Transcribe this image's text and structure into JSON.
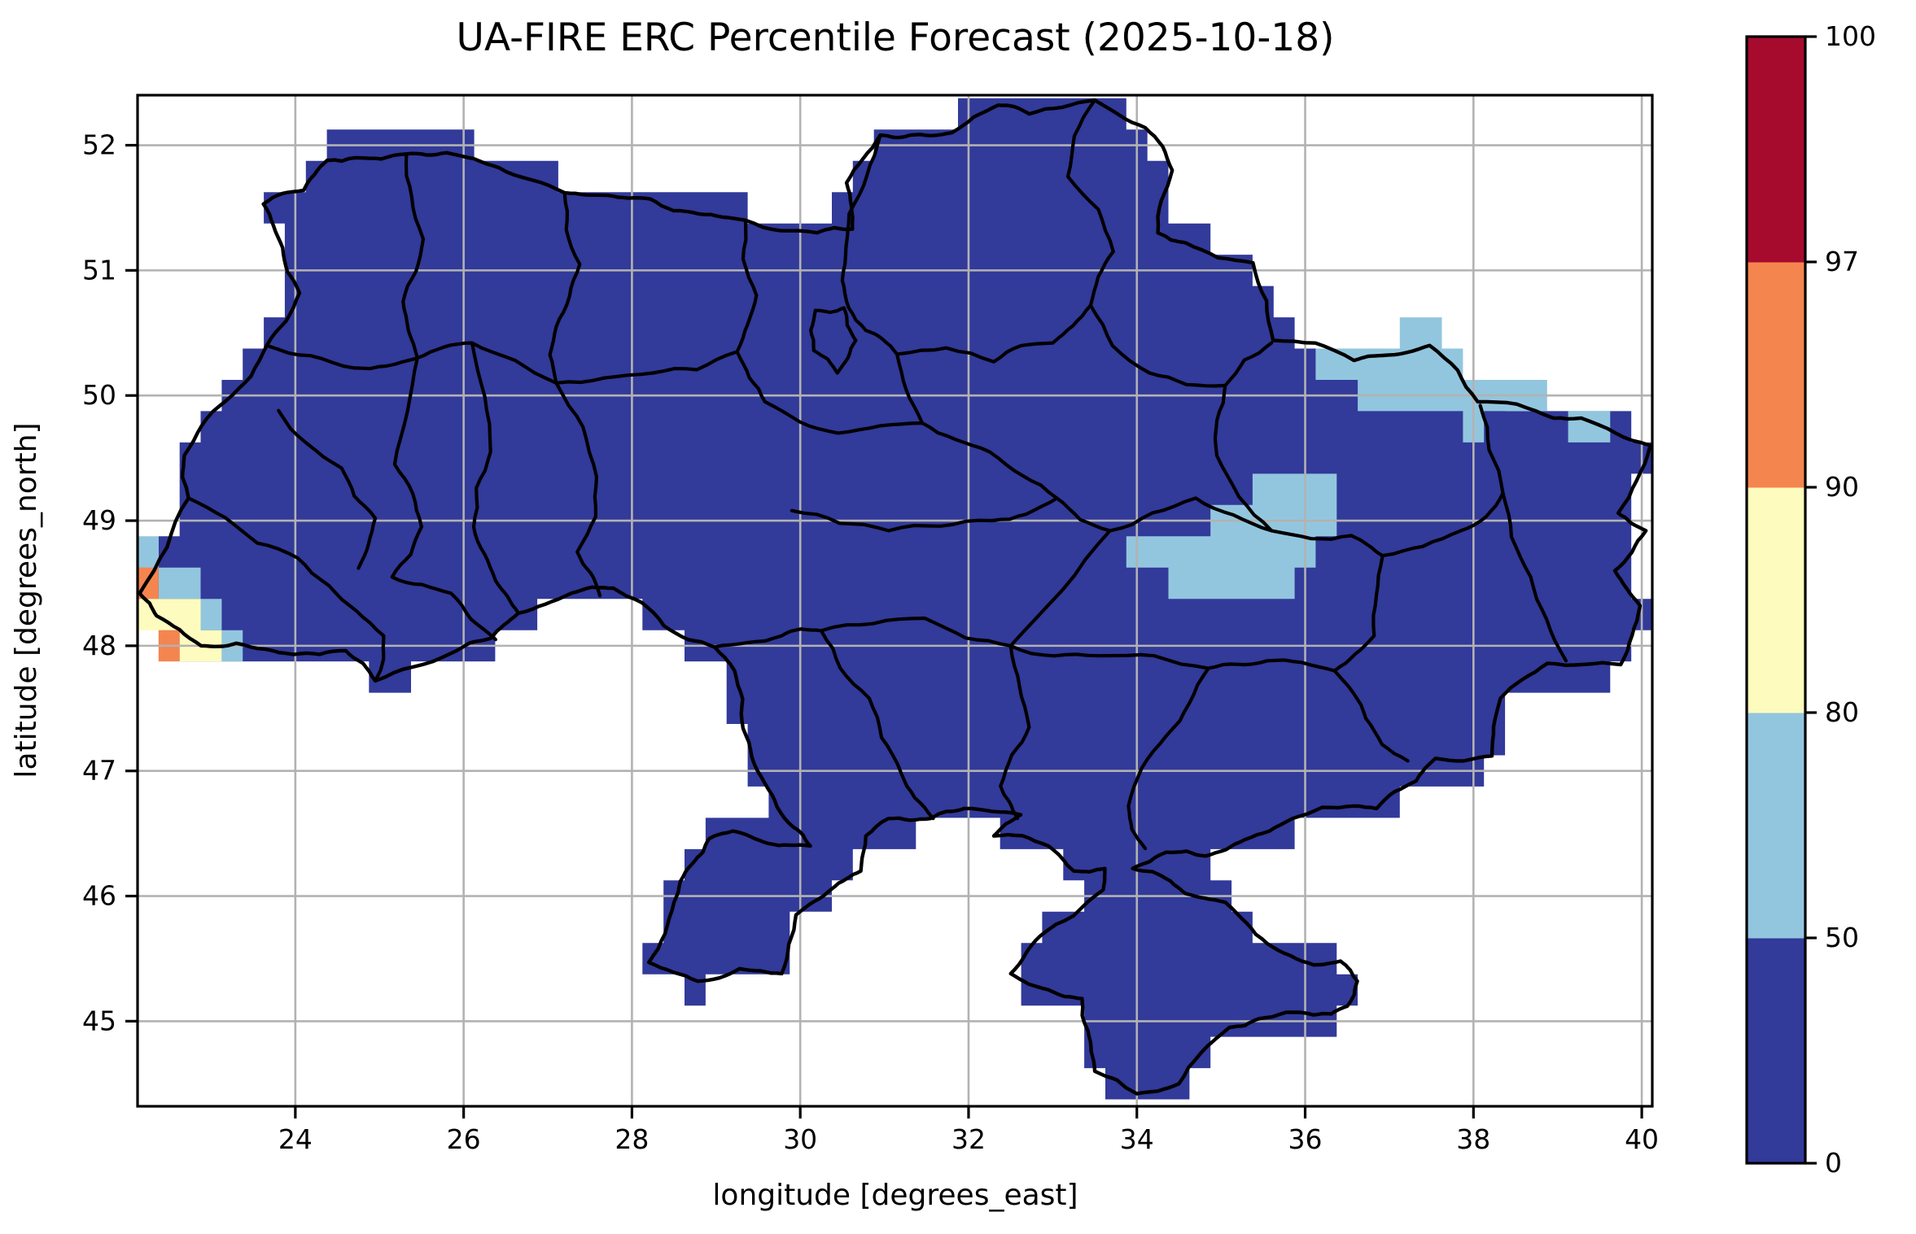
{
  "title": "UA-FIRE ERC Percentile Forecast (2025-10-18)",
  "axes": {
    "xlabel": "longitude [degrees_east]",
    "ylabel": "latitude [degrees_north]",
    "x_tick_labels": [
      "24",
      "26",
      "28",
      "30",
      "32",
      "34",
      "36",
      "38",
      "40"
    ],
    "x_tick_values": [
      24,
      26,
      28,
      30,
      32,
      34,
      36,
      38,
      40
    ],
    "y_tick_labels": [
      "45",
      "46",
      "47",
      "48",
      "49",
      "50",
      "51",
      "52"
    ],
    "y_tick_values": [
      45,
      46,
      47,
      48,
      49,
      50,
      51,
      52
    ],
    "grid_color": "#b2b2b2",
    "frame_color": "#000000"
  },
  "colorbar": {
    "tick_labels": [
      "0",
      "50",
      "80",
      "90",
      "97",
      "100"
    ],
    "levels": [
      0,
      50,
      80,
      90,
      97,
      100
    ],
    "segment_colors": [
      "#323a9a",
      "#92c6de",
      "#fdfcbe",
      "#f5854f",
      "#a60b2e"
    ]
  },
  "chart_data": {
    "type": "heatmap",
    "title": "UA-FIRE ERC Percentile Forecast (2025-10-18)",
    "xlabel": "longitude [degrees_east]",
    "ylabel": "latitude [degrees_north]",
    "extent": {
      "lon": [
        22.125,
        40.125
      ],
      "lat": [
        44.32,
        52.4
      ]
    },
    "grid_resolution_deg": 0.25,
    "levels": [
      0,
      50,
      80,
      90,
      97,
      100
    ],
    "level_colors": [
      "#323a9a",
      "#92c6de",
      "#fdfcbe",
      "#f5854f",
      "#a60b2e"
    ],
    "base_class": "0-50",
    "background_outside_domain": "#ffffff",
    "patches": [
      {
        "range": "50-80",
        "rects": [
          [
            22.125,
            22.375,
            48.625,
            48.875
          ],
          [
            22.375,
            22.875,
            48.375,
            48.625
          ],
          [
            22.875,
            23.125,
            48.125,
            48.375
          ],
          [
            23.125,
            23.375,
            47.875,
            48.125
          ],
          [
            35.375,
            36.375,
            49.125,
            49.375
          ],
          [
            34.875,
            36.375,
            48.875,
            49.125
          ],
          [
            33.875,
            36.125,
            48.625,
            48.875
          ],
          [
            34.375,
            35.875,
            48.375,
            48.625
          ],
          [
            36.125,
            36.375,
            49.125,
            49.375
          ],
          [
            37.125,
            37.625,
            50.375,
            50.625
          ],
          [
            36.125,
            37.875,
            50.125,
            50.375
          ],
          [
            36.625,
            38.875,
            49.875,
            50.125
          ],
          [
            37.875,
            38.125,
            49.625,
            49.875
          ],
          [
            39.125,
            39.625,
            49.625,
            49.875
          ]
        ]
      },
      {
        "range": "80-90",
        "rects": [
          [
            22.125,
            22.875,
            48.125,
            48.375
          ],
          [
            22.625,
            23.125,
            47.875,
            48.125
          ]
        ]
      },
      {
        "range": "90-97",
        "rects": [
          [
            22.125,
            22.375,
            48.375,
            48.625
          ],
          [
            22.375,
            22.625,
            47.875,
            48.125
          ]
        ]
      },
      {
        "range": "97-100",
        "rects": []
      }
    ],
    "ukraine_border": [
      [
        23.62,
        51.53
      ],
      [
        23.85,
        51.18
      ],
      [
        24.05,
        50.82
      ],
      [
        23.66,
        50.4
      ],
      [
        23.18,
        49.96
      ],
      [
        22.68,
        49.52
      ],
      [
        22.73,
        49.18
      ],
      [
        22.15,
        48.42
      ],
      [
        22.35,
        48.24
      ],
      [
        22.88,
        48.0
      ],
      [
        23.3,
        48.02
      ],
      [
        23.98,
        47.93
      ],
      [
        24.6,
        47.96
      ],
      [
        24.95,
        47.72
      ],
      [
        25.85,
        47.94
      ],
      [
        26.32,
        48.06
      ],
      [
        26.65,
        48.26
      ],
      [
        27.28,
        48.42
      ],
      [
        27.78,
        48.46
      ],
      [
        28.38,
        48.16
      ],
      [
        28.98,
        47.99
      ],
      [
        29.22,
        47.8
      ],
      [
        29.32,
        47.34
      ],
      [
        29.58,
        46.9
      ],
      [
        29.92,
        46.55
      ],
      [
        30.12,
        46.4
      ],
      [
        29.62,
        46.42
      ],
      [
        29.2,
        46.52
      ],
      [
        28.92,
        46.46
      ],
      [
        28.72,
        46.26
      ],
      [
        28.5,
        45.95
      ],
      [
        28.2,
        45.47
      ],
      [
        28.78,
        45.32
      ],
      [
        29.28,
        45.42
      ],
      [
        29.78,
        45.38
      ],
      [
        29.95,
        45.85
      ],
      [
        30.38,
        46.06
      ],
      [
        30.72,
        46.2
      ],
      [
        30.78,
        46.48
      ],
      [
        31.05,
        46.62
      ],
      [
        31.55,
        46.62
      ],
      [
        31.95,
        46.7
      ],
      [
        32.62,
        46.65
      ],
      [
        32.3,
        46.48
      ],
      [
        32.95,
        46.4
      ],
      [
        33.25,
        46.2
      ],
      [
        33.62,
        46.22
      ],
      [
        33.6,
        46.05
      ],
      [
        32.85,
        45.68
      ],
      [
        32.5,
        45.38
      ],
      [
        32.95,
        45.25
      ],
      [
        33.35,
        45.18
      ],
      [
        33.42,
        44.92
      ],
      [
        33.5,
        44.6
      ],
      [
        34.0,
        44.42
      ],
      [
        34.5,
        44.5
      ],
      [
        35.1,
        44.95
      ],
      [
        35.45,
        45.02
      ],
      [
        36.1,
        45.05
      ],
      [
        36.5,
        45.12
      ],
      [
        36.62,
        45.32
      ],
      [
        36.42,
        45.48
      ],
      [
        36.1,
        45.45
      ],
      [
        35.55,
        45.62
      ],
      [
        35.05,
        45.95
      ],
      [
        34.58,
        46.02
      ],
      [
        34.4,
        46.12
      ],
      [
        33.95,
        46.22
      ],
      [
        34.35,
        46.35
      ],
      [
        34.82,
        46.32
      ],
      [
        35.28,
        46.45
      ],
      [
        35.85,
        46.62
      ],
      [
        36.58,
        46.72
      ],
      [
        36.85,
        46.7
      ],
      [
        37.32,
        46.92
      ],
      [
        37.55,
        47.1
      ],
      [
        38.22,
        47.12
      ],
      [
        38.32,
        47.58
      ],
      [
        38.88,
        47.86
      ],
      [
        39.75,
        47.85
      ],
      [
        39.98,
        48.32
      ],
      [
        39.68,
        48.6
      ],
      [
        40.05,
        48.92
      ],
      [
        39.72,
        49.06
      ],
      [
        40.1,
        49.6
      ],
      [
        39.28,
        49.82
      ],
      [
        38.95,
        49.82
      ],
      [
        38.05,
        49.95
      ],
      [
        37.48,
        50.4
      ],
      [
        36.92,
        50.32
      ],
      [
        36.58,
        50.28
      ],
      [
        35.62,
        50.44
      ],
      [
        35.38,
        51.06
      ],
      [
        34.58,
        51.22
      ],
      [
        34.25,
        51.3
      ],
      [
        34.42,
        51.8
      ],
      [
        34.1,
        52.14
      ],
      [
        33.5,
        52.36
      ],
      [
        32.72,
        52.25
      ],
      [
        32.35,
        52.32
      ],
      [
        31.8,
        52.1
      ],
      [
        31.3,
        52.08
      ],
      [
        30.95,
        52.08
      ],
      [
        30.55,
        51.7
      ],
      [
        30.62,
        51.33
      ],
      [
        30.2,
        51.3
      ],
      [
        29.35,
        51.4
      ],
      [
        28.8,
        51.45
      ],
      [
        28.22,
        51.57
      ],
      [
        27.7,
        51.6
      ],
      [
        27.2,
        51.62
      ],
      [
        26.42,
        51.82
      ],
      [
        25.8,
        51.94
      ],
      [
        25.32,
        51.93
      ],
      [
        24.72,
        51.9
      ],
      [
        24.38,
        51.88
      ],
      [
        24.1,
        51.64
      ],
      [
        23.62,
        51.53
      ]
    ],
    "region_borders": [
      [
        [
          25.32,
          51.93
        ],
        [
          25.52,
          51.25
        ],
        [
          25.28,
          50.75
        ],
        [
          25.45,
          50.3
        ]
      ],
      [
        [
          23.66,
          50.4
        ],
        [
          24.7,
          50.22
        ],
        [
          25.45,
          50.3
        ],
        [
          26.1,
          50.42
        ]
      ],
      [
        [
          26.1,
          50.42
        ],
        [
          27.1,
          50.1
        ]
      ],
      [
        [
          27.2,
          51.62
        ],
        [
          27.38,
          51.05
        ],
        [
          27.1,
          50.55
        ],
        [
          27.1,
          50.1
        ]
      ],
      [
        [
          29.35,
          51.4
        ],
        [
          29.48,
          50.8
        ],
        [
          29.25,
          50.35
        ],
        [
          29.58,
          49.95
        ]
      ],
      [
        [
          27.1,
          50.1
        ],
        [
          28.25,
          50.18
        ],
        [
          29.25,
          50.35
        ]
      ],
      [
        [
          30.95,
          52.08
        ],
        [
          30.58,
          51.45
        ],
        [
          30.5,
          50.92
        ],
        [
          30.78,
          50.52
        ],
        [
          31.15,
          50.33
        ]
      ],
      [
        [
          33.5,
          52.36
        ],
        [
          33.18,
          51.75
        ],
        [
          33.72,
          51.15
        ],
        [
          33.45,
          50.72
        ]
      ],
      [
        [
          31.15,
          50.33
        ],
        [
          32.3,
          50.27
        ],
        [
          33.0,
          50.42
        ],
        [
          33.45,
          50.72
        ]
      ],
      [
        [
          33.45,
          50.72
        ],
        [
          34.15,
          50.18
        ],
        [
          35.05,
          50.08
        ],
        [
          35.6,
          50.42
        ]
      ],
      [
        [
          29.58,
          49.95
        ],
        [
          30.45,
          49.7
        ],
        [
          31.45,
          49.78
        ],
        [
          31.15,
          50.33
        ]
      ],
      [
        [
          31.45,
          49.78
        ],
        [
          32.25,
          49.55
        ],
        [
          33.05,
          49.18
        ],
        [
          33.68,
          48.92
        ]
      ],
      [
        [
          30.18,
          50.68
        ],
        [
          30.52,
          50.7
        ],
        [
          30.66,
          50.44
        ],
        [
          30.44,
          50.18
        ],
        [
          30.16,
          50.36
        ],
        [
          30.18,
          50.68
        ]
      ],
      [
        [
          26.1,
          50.42
        ],
        [
          26.32,
          49.55
        ],
        [
          26.12,
          48.95
        ],
        [
          26.38,
          48.52
        ],
        [
          26.65,
          48.26
        ]
      ],
      [
        [
          25.45,
          50.3
        ],
        [
          25.18,
          49.45
        ],
        [
          25.5,
          48.95
        ],
        [
          25.15,
          48.55
        ]
      ],
      [
        [
          27.1,
          50.1
        ],
        [
          27.58,
          49.35
        ],
        [
          27.35,
          48.75
        ],
        [
          27.62,
          48.4
        ]
      ],
      [
        [
          22.73,
          49.18
        ],
        [
          23.55,
          48.82
        ],
        [
          24.4,
          48.48
        ],
        [
          25.05,
          48.08
        ],
        [
          24.95,
          47.72
        ]
      ],
      [
        [
          23.8,
          49.88
        ],
        [
          24.55,
          49.42
        ],
        [
          24.95,
          49.02
        ],
        [
          24.75,
          48.62
        ]
      ],
      [
        [
          25.15,
          48.55
        ],
        [
          25.85,
          48.42
        ],
        [
          26.38,
          48.05
        ]
      ],
      [
        [
          28.98,
          47.99
        ],
        [
          29.78,
          48.08
        ],
        [
          30.25,
          48.12
        ]
      ],
      [
        [
          30.25,
          48.12
        ],
        [
          30.82,
          47.58
        ],
        [
          31.2,
          46.98
        ],
        [
          31.58,
          46.62
        ]
      ],
      [
        [
          29.9,
          49.08
        ],
        [
          31.05,
          48.92
        ],
        [
          32.28,
          49.0
        ],
        [
          33.05,
          49.18
        ]
      ],
      [
        [
          30.25,
          48.12
        ],
        [
          31.48,
          48.22
        ],
        [
          32.5,
          48.0
        ],
        [
          33.68,
          48.92
        ]
      ],
      [
        [
          32.5,
          48.0
        ],
        [
          32.72,
          47.35
        ],
        [
          32.38,
          46.88
        ],
        [
          32.58,
          46.62
        ]
      ],
      [
        [
          32.5,
          48.0
        ],
        [
          33.55,
          47.92
        ],
        [
          34.85,
          47.82
        ]
      ],
      [
        [
          33.68,
          48.92
        ],
        [
          34.7,
          49.18
        ],
        [
          35.6,
          48.92
        ],
        [
          36.55,
          48.88
        ]
      ],
      [
        [
          35.05,
          50.08
        ],
        [
          34.95,
          49.52
        ],
        [
          35.6,
          48.92
        ]
      ],
      [
        [
          36.55,
          48.88
        ],
        [
          36.92,
          48.72
        ],
        [
          36.82,
          48.08
        ],
        [
          36.35,
          47.8
        ]
      ],
      [
        [
          36.92,
          48.72
        ],
        [
          37.85,
          48.92
        ],
        [
          38.35,
          49.22
        ]
      ],
      [
        [
          38.35,
          49.22
        ],
        [
          38.08,
          49.92
        ]
      ],
      [
        [
          38.35,
          49.22
        ],
        [
          38.68,
          48.55
        ],
        [
          39.1,
          47.88
        ]
      ],
      [
        [
          34.85,
          47.82
        ],
        [
          35.55,
          47.88
        ],
        [
          36.35,
          47.8
        ]
      ],
      [
        [
          36.35,
          47.8
        ],
        [
          36.72,
          47.42
        ],
        [
          37.22,
          47.08
        ]
      ],
      [
        [
          34.85,
          47.82
        ],
        [
          34.35,
          47.28
        ],
        [
          33.9,
          46.72
        ],
        [
          34.1,
          46.38
        ]
      ]
    ]
  }
}
